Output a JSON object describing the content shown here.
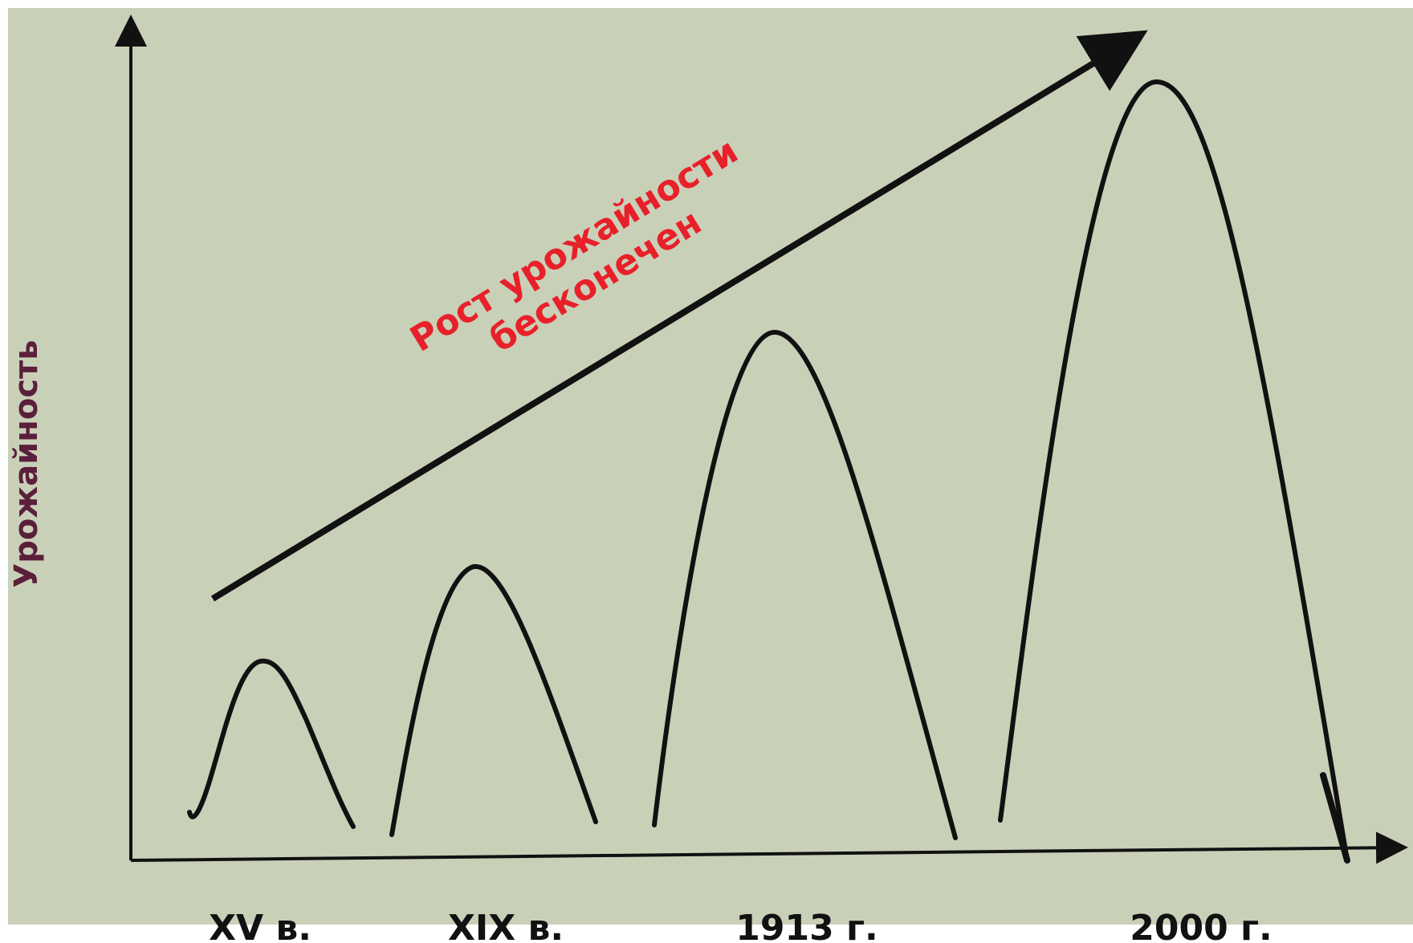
{
  "diagram": {
    "background": "#c9d0b8",
    "ylabel": "Урожайность",
    "ylabel_color": "#5a1f3a",
    "trend_label_line1": "Рост урожайности",
    "trend_label_line2": "бесконечен",
    "trend_color": "#e8202a",
    "line_color": "#111111"
  },
  "chart_data": {
    "type": "line",
    "ylabel": "Урожайность",
    "categories": [
      "XV в.",
      "XIX в.",
      "1913 г.",
      "2000 г."
    ],
    "series": [
      {
        "values": [
          22,
          35,
          64,
          95
        ]
      }
    ],
    "annotations": [
      "Рост урожайности бесконечен"
    ],
    "grid": false
  }
}
